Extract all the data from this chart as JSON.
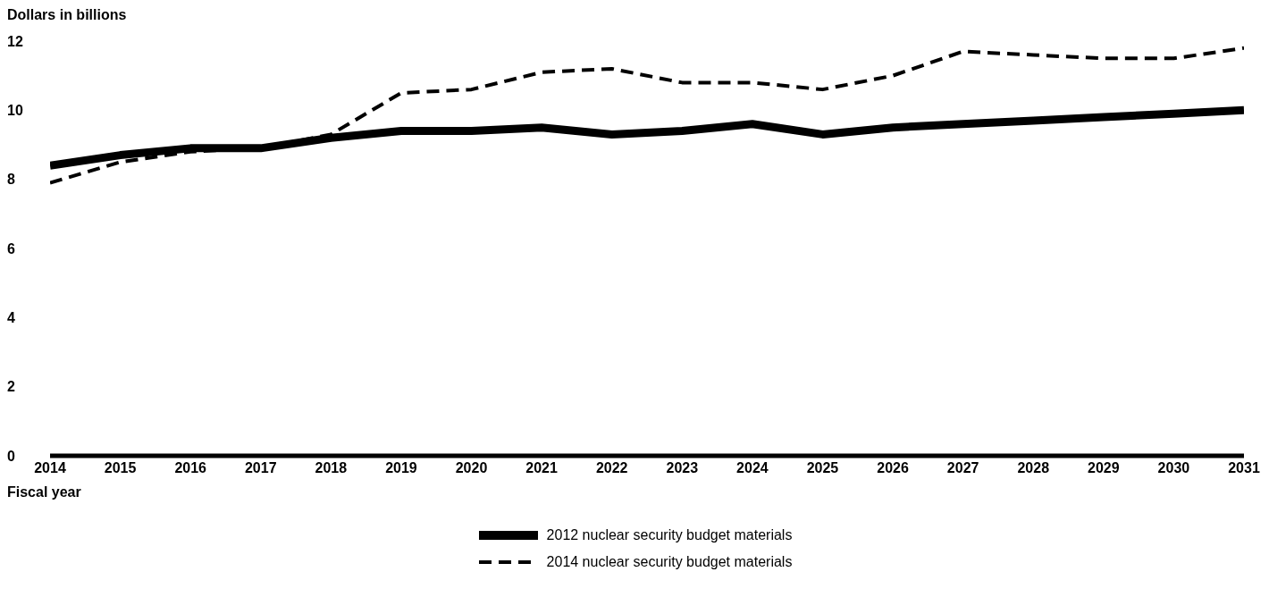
{
  "chart_data": {
    "type": "line",
    "ylabel": "Dollars in billions",
    "xlabel": "Fiscal year",
    "x": [
      2014,
      2015,
      2016,
      2017,
      2018,
      2019,
      2020,
      2021,
      2022,
      2023,
      2024,
      2025,
      2026,
      2027,
      2028,
      2029,
      2030,
      2031
    ],
    "series": [
      {
        "name": "2012 nuclear security budget materials",
        "color": "#000000",
        "line_style": "solid",
        "values": [
          8.4,
          8.7,
          8.9,
          8.9,
          9.2,
          9.4,
          9.4,
          9.5,
          9.3,
          9.4,
          9.6,
          9.3,
          9.5,
          9.6,
          9.7,
          9.8,
          9.9,
          10.0
        ]
      },
      {
        "name": "2014 nuclear security budget materials",
        "color": "#000000",
        "line_style": "dashed",
        "values": [
          7.9,
          8.5,
          8.8,
          8.9,
          9.3,
          10.5,
          10.6,
          11.1,
          11.2,
          10.8,
          10.8,
          10.6,
          11.0,
          11.7,
          11.6,
          11.5,
          11.5,
          11.8
        ]
      }
    ],
    "xlim": [
      2014,
      2031
    ],
    "xticks": [
      2014,
      2015,
      2016,
      2017,
      2018,
      2019,
      2020,
      2021,
      2022,
      2023,
      2024,
      2025,
      2026,
      2027,
      2028,
      2029,
      2030,
      2031
    ],
    "ylim": [
      0,
      12
    ],
    "yticks": [
      0,
      2,
      4,
      6,
      8,
      10,
      12
    ],
    "grid": false,
    "legend": "bottom",
    "marker": "none"
  }
}
